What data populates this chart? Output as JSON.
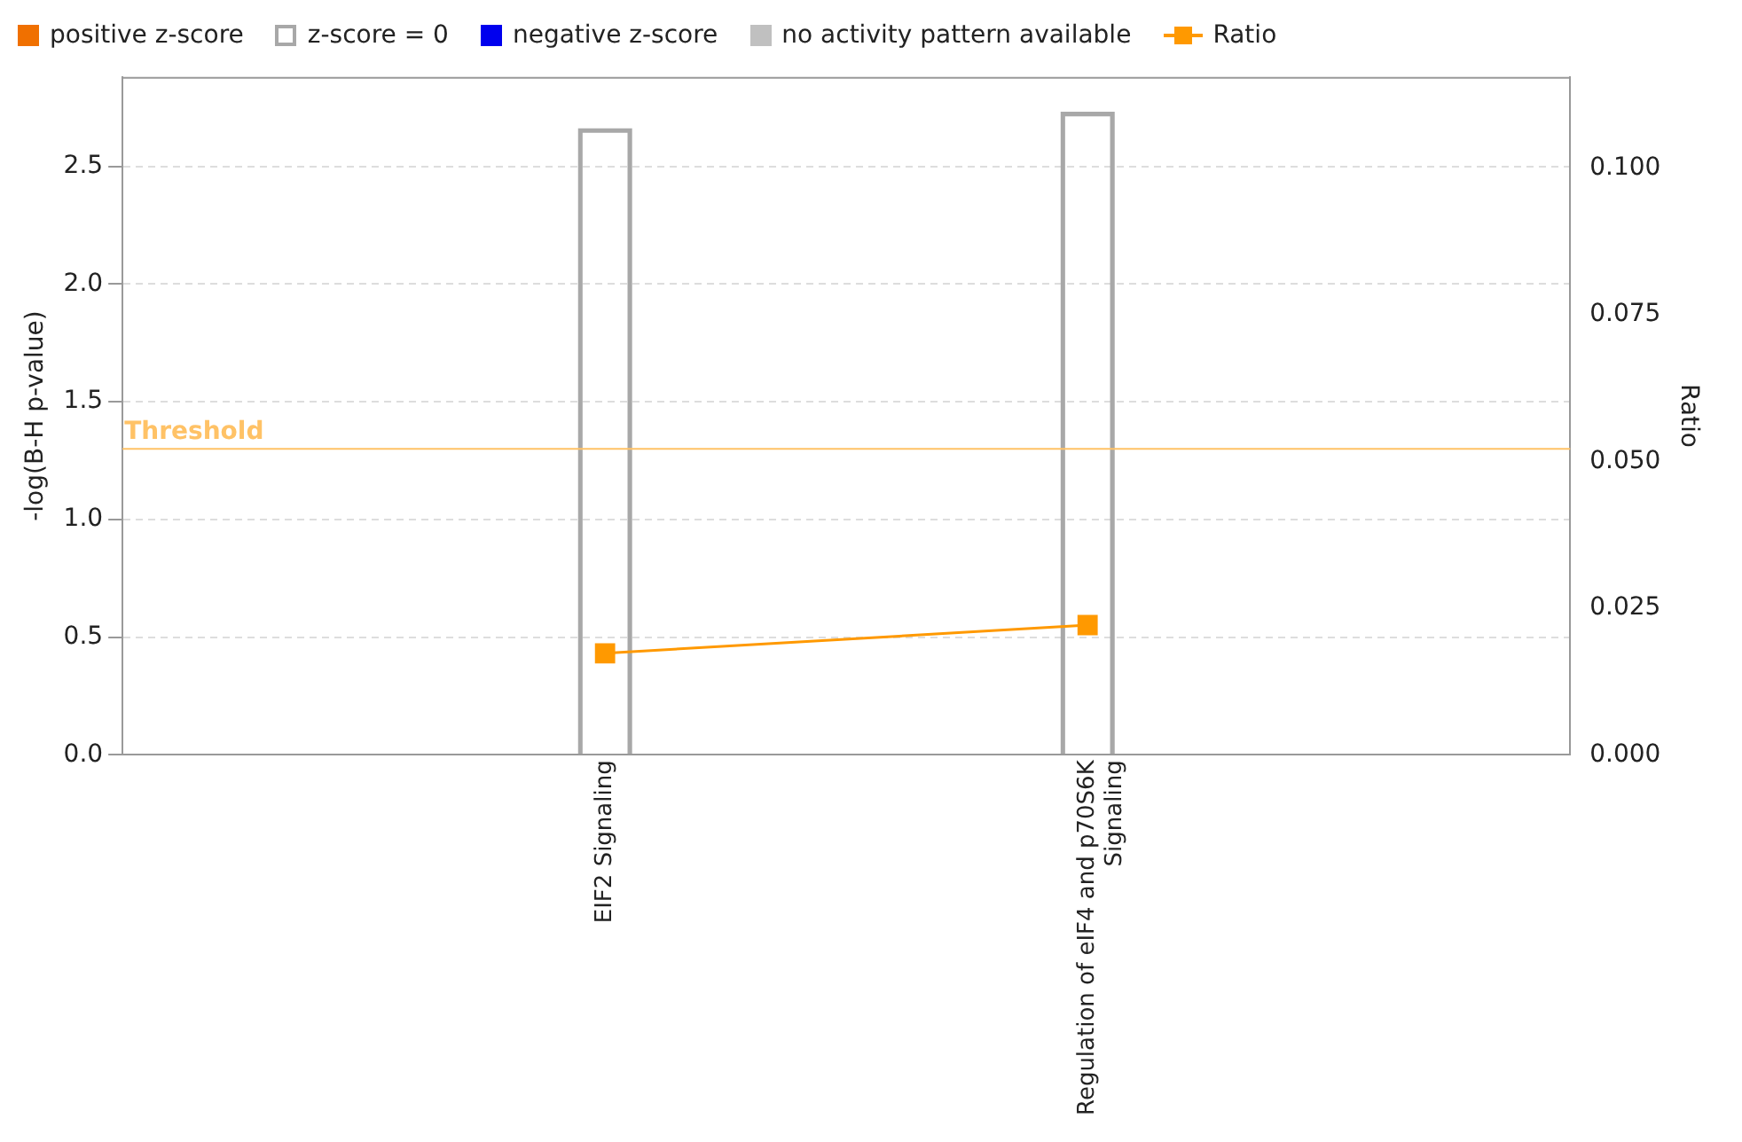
{
  "chart_data": {
    "type": "bar",
    "categories": [
      null,
      "EIF2 Signaling",
      "Regulation of eIF4 and p70S6K Signaling",
      null
    ],
    "series": [
      {
        "name": "positive z-score",
        "color": "#f07000",
        "values": [
          null,
          null,
          null,
          null
        ]
      },
      {
        "name": "z-score = 0",
        "color": "#a8a8a8",
        "values": [
          null,
          2.66,
          2.73,
          null
        ]
      },
      {
        "name": "negative z-score",
        "color": "#0000ee",
        "values": [
          null,
          null,
          null,
          null
        ]
      },
      {
        "name": "no activity pattern available",
        "color": "#c0c0c0",
        "values": [
          null,
          null,
          null,
          null
        ]
      },
      {
        "name": "Ratio",
        "type": "line",
        "axis": "y2",
        "color": "#ff9900",
        "values": [
          null,
          0.0173,
          0.0221,
          null
        ]
      }
    ],
    "ylabel": "-log(B-H p-value)",
    "y2label": "Ratio",
    "ylim": [
      0,
      2.88
    ],
    "yticks": [
      {
        "value": 0,
        "label": "0.0"
      },
      {
        "value": 0.5,
        "label": "0.5"
      },
      {
        "value": 1,
        "label": "1.0"
      },
      {
        "value": 1.5,
        "label": "1.5"
      },
      {
        "value": 2,
        "label": "2.0"
      },
      {
        "value": 2.5,
        "label": "2.5"
      }
    ],
    "y2lim": [
      0,
      0.1155
    ],
    "y2ticks": [
      {
        "value": 0,
        "label": "0.000"
      },
      {
        "value": 0.025,
        "label": "0.025"
      },
      {
        "value": 0.05,
        "label": "0.050"
      },
      {
        "value": 0.075,
        "label": "0.075"
      },
      {
        "value": 0.1,
        "label": "0.100"
      }
    ],
    "ref_lines": [
      {
        "axis": "y",
        "value": 1.3,
        "label": "Threshold",
        "color": "#ffc266"
      }
    ],
    "grid": "y",
    "legend": "top left",
    "marker": "square"
  }
}
